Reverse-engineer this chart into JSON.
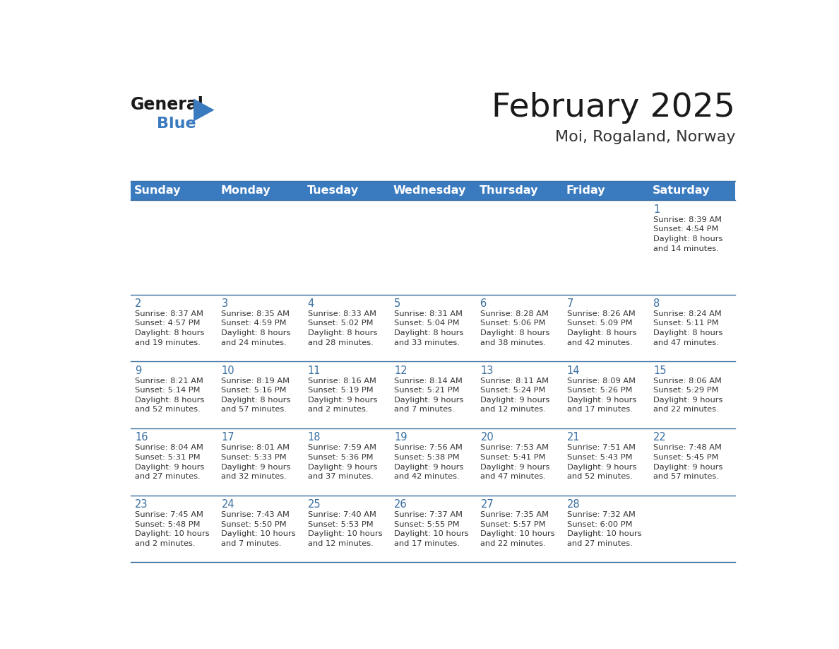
{
  "title": "February 2025",
  "subtitle": "Moi, Rogaland, Norway",
  "header_bg_color": "#3a7abf",
  "header_text_color": "#ffffff",
  "day_names": [
    "Sunday",
    "Monday",
    "Tuesday",
    "Wednesday",
    "Thursday",
    "Friday",
    "Saturday"
  ],
  "cell_bg_color": "#ffffff",
  "border_color": "#3a6fa0",
  "title_color": "#1a1a1a",
  "subtitle_color": "#333333",
  "day_number_color": "#3a6fa0",
  "cell_text_color": "#333333",
  "logo_general_color": "#1a1a1a",
  "logo_blue_color": "#3a7abf",
  "logo_triangle_color": "#3a7abf",
  "calendar": [
    [
      {
        "day": 0,
        "info": ""
      },
      {
        "day": 0,
        "info": ""
      },
      {
        "day": 0,
        "info": ""
      },
      {
        "day": 0,
        "info": ""
      },
      {
        "day": 0,
        "info": ""
      },
      {
        "day": 0,
        "info": ""
      },
      {
        "day": 1,
        "info": "Sunrise: 8:39 AM\nSunset: 4:54 PM\nDaylight: 8 hours\nand 14 minutes."
      }
    ],
    [
      {
        "day": 2,
        "info": "Sunrise: 8:37 AM\nSunset: 4:57 PM\nDaylight: 8 hours\nand 19 minutes."
      },
      {
        "day": 3,
        "info": "Sunrise: 8:35 AM\nSunset: 4:59 PM\nDaylight: 8 hours\nand 24 minutes."
      },
      {
        "day": 4,
        "info": "Sunrise: 8:33 AM\nSunset: 5:02 PM\nDaylight: 8 hours\nand 28 minutes."
      },
      {
        "day": 5,
        "info": "Sunrise: 8:31 AM\nSunset: 5:04 PM\nDaylight: 8 hours\nand 33 minutes."
      },
      {
        "day": 6,
        "info": "Sunrise: 8:28 AM\nSunset: 5:06 PM\nDaylight: 8 hours\nand 38 minutes."
      },
      {
        "day": 7,
        "info": "Sunrise: 8:26 AM\nSunset: 5:09 PM\nDaylight: 8 hours\nand 42 minutes."
      },
      {
        "day": 8,
        "info": "Sunrise: 8:24 AM\nSunset: 5:11 PM\nDaylight: 8 hours\nand 47 minutes."
      }
    ],
    [
      {
        "day": 9,
        "info": "Sunrise: 8:21 AM\nSunset: 5:14 PM\nDaylight: 8 hours\nand 52 minutes."
      },
      {
        "day": 10,
        "info": "Sunrise: 8:19 AM\nSunset: 5:16 PM\nDaylight: 8 hours\nand 57 minutes."
      },
      {
        "day": 11,
        "info": "Sunrise: 8:16 AM\nSunset: 5:19 PM\nDaylight: 9 hours\nand 2 minutes."
      },
      {
        "day": 12,
        "info": "Sunrise: 8:14 AM\nSunset: 5:21 PM\nDaylight: 9 hours\nand 7 minutes."
      },
      {
        "day": 13,
        "info": "Sunrise: 8:11 AM\nSunset: 5:24 PM\nDaylight: 9 hours\nand 12 minutes."
      },
      {
        "day": 14,
        "info": "Sunrise: 8:09 AM\nSunset: 5:26 PM\nDaylight: 9 hours\nand 17 minutes."
      },
      {
        "day": 15,
        "info": "Sunrise: 8:06 AM\nSunset: 5:29 PM\nDaylight: 9 hours\nand 22 minutes."
      }
    ],
    [
      {
        "day": 16,
        "info": "Sunrise: 8:04 AM\nSunset: 5:31 PM\nDaylight: 9 hours\nand 27 minutes."
      },
      {
        "day": 17,
        "info": "Sunrise: 8:01 AM\nSunset: 5:33 PM\nDaylight: 9 hours\nand 32 minutes."
      },
      {
        "day": 18,
        "info": "Sunrise: 7:59 AM\nSunset: 5:36 PM\nDaylight: 9 hours\nand 37 minutes."
      },
      {
        "day": 19,
        "info": "Sunrise: 7:56 AM\nSunset: 5:38 PM\nDaylight: 9 hours\nand 42 minutes."
      },
      {
        "day": 20,
        "info": "Sunrise: 7:53 AM\nSunset: 5:41 PM\nDaylight: 9 hours\nand 47 minutes."
      },
      {
        "day": 21,
        "info": "Sunrise: 7:51 AM\nSunset: 5:43 PM\nDaylight: 9 hours\nand 52 minutes."
      },
      {
        "day": 22,
        "info": "Sunrise: 7:48 AM\nSunset: 5:45 PM\nDaylight: 9 hours\nand 57 minutes."
      }
    ],
    [
      {
        "day": 23,
        "info": "Sunrise: 7:45 AM\nSunset: 5:48 PM\nDaylight: 10 hours\nand 2 minutes."
      },
      {
        "day": 24,
        "info": "Sunrise: 7:43 AM\nSunset: 5:50 PM\nDaylight: 10 hours\nand 7 minutes."
      },
      {
        "day": 25,
        "info": "Sunrise: 7:40 AM\nSunset: 5:53 PM\nDaylight: 10 hours\nand 12 minutes."
      },
      {
        "day": 26,
        "info": "Sunrise: 7:37 AM\nSunset: 5:55 PM\nDaylight: 10 hours\nand 17 minutes."
      },
      {
        "day": 27,
        "info": "Sunrise: 7:35 AM\nSunset: 5:57 PM\nDaylight: 10 hours\nand 22 minutes."
      },
      {
        "day": 28,
        "info": "Sunrise: 7:32 AM\nSunset: 6:00 PM\nDaylight: 10 hours\nand 27 minutes."
      },
      {
        "day": 0,
        "info": ""
      }
    ]
  ]
}
